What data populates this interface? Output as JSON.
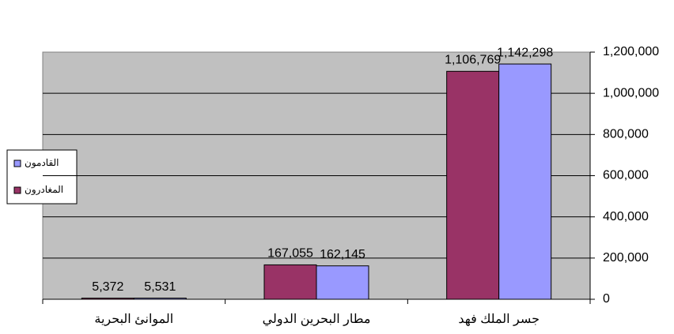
{
  "chart_data": {
    "type": "bar",
    "categories": [
      "الموانئ البحرية",
      "مطار البحرين الدولي",
      "جسر الملك فهد"
    ],
    "series": [
      {
        "name": "المغادرون",
        "color": "#993366",
        "values": [
          5372,
          167055,
          1106769
        ],
        "value_labels": [
          "5,372",
          "167,055",
          "1,106,769"
        ]
      },
      {
        "name": "القادمون",
        "color": "#9999ff",
        "values": [
          5531,
          162145,
          1142298
        ],
        "value_labels": [
          "5,531",
          "162,145",
          "1,142,298"
        ]
      }
    ],
    "ylim": [
      0,
      1200000
    ],
    "yticks": [
      0,
      {
        "value": 200000,
        "label": "200,000"
      },
      {
        "value": 400000,
        "label": "400,000"
      },
      {
        "value": 600000,
        "label": "600,000"
      },
      {
        "value": 800000,
        "label": "800,000"
      },
      {
        "value": 1000000,
        "label": "1,000,000"
      },
      {
        "value": 1200000,
        "label": "1,200,000"
      }
    ],
    "grid": true,
    "legend": "left",
    "axis_side": "right",
    "plot_background": "#c0c0c0"
  }
}
